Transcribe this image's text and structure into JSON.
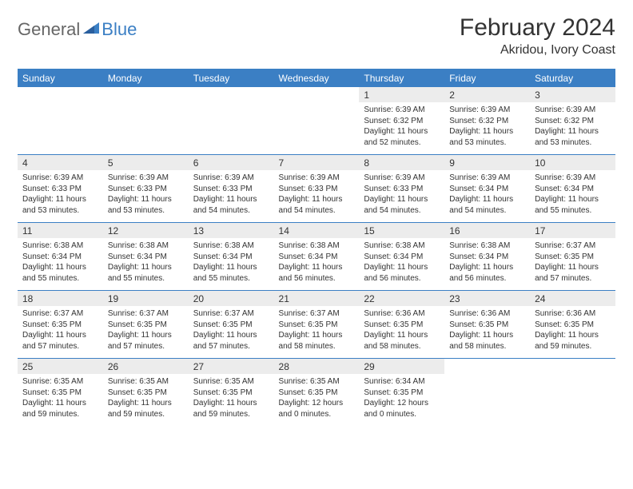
{
  "brand": {
    "part1": "General",
    "part2": "Blue"
  },
  "title": "February 2024",
  "location": "Akridou, Ivory Coast",
  "colors": {
    "header_bg": "#3b7fc4",
    "header_text": "#ffffff",
    "daynum_bg": "#ececec",
    "page_bg": "#ffffff",
    "text": "#333333",
    "logo_gray": "#666666",
    "logo_blue": "#3b7fc4"
  },
  "typography": {
    "title_fontsize": 30,
    "location_fontsize": 16,
    "header_fontsize": 12,
    "daynum_fontsize": 12,
    "cell_fontsize": 10
  },
  "day_names": [
    "Sunday",
    "Monday",
    "Tuesday",
    "Wednesday",
    "Thursday",
    "Friday",
    "Saturday"
  ],
  "weeks": [
    [
      null,
      null,
      null,
      null,
      {
        "n": "1",
        "sr": "Sunrise: 6:39 AM",
        "ss": "Sunset: 6:32 PM",
        "dl": "Daylight: 11 hours and 52 minutes."
      },
      {
        "n": "2",
        "sr": "Sunrise: 6:39 AM",
        "ss": "Sunset: 6:32 PM",
        "dl": "Daylight: 11 hours and 53 minutes."
      },
      {
        "n": "3",
        "sr": "Sunrise: 6:39 AM",
        "ss": "Sunset: 6:32 PM",
        "dl": "Daylight: 11 hours and 53 minutes."
      }
    ],
    [
      {
        "n": "4",
        "sr": "Sunrise: 6:39 AM",
        "ss": "Sunset: 6:33 PM",
        "dl": "Daylight: 11 hours and 53 minutes."
      },
      {
        "n": "5",
        "sr": "Sunrise: 6:39 AM",
        "ss": "Sunset: 6:33 PM",
        "dl": "Daylight: 11 hours and 53 minutes."
      },
      {
        "n": "6",
        "sr": "Sunrise: 6:39 AM",
        "ss": "Sunset: 6:33 PM",
        "dl": "Daylight: 11 hours and 54 minutes."
      },
      {
        "n": "7",
        "sr": "Sunrise: 6:39 AM",
        "ss": "Sunset: 6:33 PM",
        "dl": "Daylight: 11 hours and 54 minutes."
      },
      {
        "n": "8",
        "sr": "Sunrise: 6:39 AM",
        "ss": "Sunset: 6:33 PM",
        "dl": "Daylight: 11 hours and 54 minutes."
      },
      {
        "n": "9",
        "sr": "Sunrise: 6:39 AM",
        "ss": "Sunset: 6:34 PM",
        "dl": "Daylight: 11 hours and 54 minutes."
      },
      {
        "n": "10",
        "sr": "Sunrise: 6:39 AM",
        "ss": "Sunset: 6:34 PM",
        "dl": "Daylight: 11 hours and 55 minutes."
      }
    ],
    [
      {
        "n": "11",
        "sr": "Sunrise: 6:38 AM",
        "ss": "Sunset: 6:34 PM",
        "dl": "Daylight: 11 hours and 55 minutes."
      },
      {
        "n": "12",
        "sr": "Sunrise: 6:38 AM",
        "ss": "Sunset: 6:34 PM",
        "dl": "Daylight: 11 hours and 55 minutes."
      },
      {
        "n": "13",
        "sr": "Sunrise: 6:38 AM",
        "ss": "Sunset: 6:34 PM",
        "dl": "Daylight: 11 hours and 55 minutes."
      },
      {
        "n": "14",
        "sr": "Sunrise: 6:38 AM",
        "ss": "Sunset: 6:34 PM",
        "dl": "Daylight: 11 hours and 56 minutes."
      },
      {
        "n": "15",
        "sr": "Sunrise: 6:38 AM",
        "ss": "Sunset: 6:34 PM",
        "dl": "Daylight: 11 hours and 56 minutes."
      },
      {
        "n": "16",
        "sr": "Sunrise: 6:38 AM",
        "ss": "Sunset: 6:34 PM",
        "dl": "Daylight: 11 hours and 56 minutes."
      },
      {
        "n": "17",
        "sr": "Sunrise: 6:37 AM",
        "ss": "Sunset: 6:35 PM",
        "dl": "Daylight: 11 hours and 57 minutes."
      }
    ],
    [
      {
        "n": "18",
        "sr": "Sunrise: 6:37 AM",
        "ss": "Sunset: 6:35 PM",
        "dl": "Daylight: 11 hours and 57 minutes."
      },
      {
        "n": "19",
        "sr": "Sunrise: 6:37 AM",
        "ss": "Sunset: 6:35 PM",
        "dl": "Daylight: 11 hours and 57 minutes."
      },
      {
        "n": "20",
        "sr": "Sunrise: 6:37 AM",
        "ss": "Sunset: 6:35 PM",
        "dl": "Daylight: 11 hours and 57 minutes."
      },
      {
        "n": "21",
        "sr": "Sunrise: 6:37 AM",
        "ss": "Sunset: 6:35 PM",
        "dl": "Daylight: 11 hours and 58 minutes."
      },
      {
        "n": "22",
        "sr": "Sunrise: 6:36 AM",
        "ss": "Sunset: 6:35 PM",
        "dl": "Daylight: 11 hours and 58 minutes."
      },
      {
        "n": "23",
        "sr": "Sunrise: 6:36 AM",
        "ss": "Sunset: 6:35 PM",
        "dl": "Daylight: 11 hours and 58 minutes."
      },
      {
        "n": "24",
        "sr": "Sunrise: 6:36 AM",
        "ss": "Sunset: 6:35 PM",
        "dl": "Daylight: 11 hours and 59 minutes."
      }
    ],
    [
      {
        "n": "25",
        "sr": "Sunrise: 6:35 AM",
        "ss": "Sunset: 6:35 PM",
        "dl": "Daylight: 11 hours and 59 minutes."
      },
      {
        "n": "26",
        "sr": "Sunrise: 6:35 AM",
        "ss": "Sunset: 6:35 PM",
        "dl": "Daylight: 11 hours and 59 minutes."
      },
      {
        "n": "27",
        "sr": "Sunrise: 6:35 AM",
        "ss": "Sunset: 6:35 PM",
        "dl": "Daylight: 11 hours and 59 minutes."
      },
      {
        "n": "28",
        "sr": "Sunrise: 6:35 AM",
        "ss": "Sunset: 6:35 PM",
        "dl": "Daylight: 12 hours and 0 minutes."
      },
      {
        "n": "29",
        "sr": "Sunrise: 6:34 AM",
        "ss": "Sunset: 6:35 PM",
        "dl": "Daylight: 12 hours and 0 minutes."
      },
      null,
      null
    ]
  ]
}
